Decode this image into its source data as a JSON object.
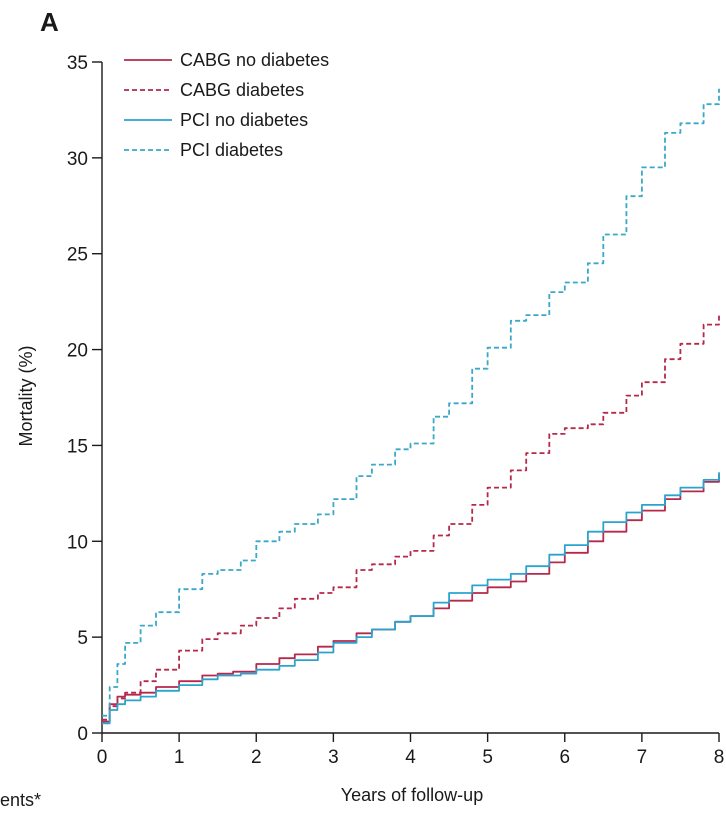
{
  "chart_data": {
    "type": "line",
    "panel_label": "A",
    "xlabel": "Years of follow-up",
    "ylabel": "Mortality (%)",
    "xlim": [
      0,
      8
    ],
    "ylim": [
      0,
      35
    ],
    "x_ticks": [
      0,
      1,
      2,
      3,
      4,
      5,
      6,
      7,
      8
    ],
    "y_ticks": [
      0,
      5,
      10,
      15,
      20,
      25,
      30,
      35
    ],
    "grid": false,
    "legend_position": "top-left",
    "series": [
      {
        "name": "CABG no diabetes",
        "color": "#b5294a",
        "dash": "solid",
        "x": [
          0,
          0.1,
          0.2,
          0.3,
          0.5,
          0.7,
          1.0,
          1.3,
          1.5,
          1.7,
          2.0,
          2.3,
          2.5,
          2.8,
          3.0,
          3.3,
          3.5,
          3.8,
          4.0,
          4.3,
          4.5,
          4.8,
          5.0,
          5.3,
          5.5,
          5.8,
          6.0,
          6.3,
          6.5,
          6.8,
          7.0,
          7.3,
          7.5,
          7.8,
          8.0
        ],
        "y": [
          0.6,
          1.5,
          1.9,
          2.0,
          2.1,
          2.4,
          2.7,
          3.0,
          3.1,
          3.2,
          3.6,
          3.9,
          4.1,
          4.5,
          4.8,
          5.2,
          5.4,
          5.8,
          6.1,
          6.5,
          6.9,
          7.3,
          7.6,
          7.9,
          8.3,
          8.9,
          9.4,
          10.0,
          10.5,
          11.1,
          11.6,
          12.2,
          12.6,
          13.1,
          13.5
        ]
      },
      {
        "name": "CABG diabetes",
        "color": "#b5294a",
        "dash": "dashed",
        "x": [
          0,
          0.1,
          0.2,
          0.3,
          0.5,
          0.7,
          1.0,
          1.3,
          1.5,
          1.8,
          2.0,
          2.3,
          2.5,
          2.8,
          3.0,
          3.3,
          3.5,
          3.8,
          4.0,
          4.3,
          4.5,
          4.8,
          5.0,
          5.3,
          5.5,
          5.8,
          6.0,
          6.3,
          6.5,
          6.8,
          7.0,
          7.3,
          7.5,
          7.8,
          8.0
        ],
        "y": [
          0.7,
          1.4,
          1.8,
          2.1,
          2.7,
          3.3,
          4.3,
          4.9,
          5.2,
          5.6,
          6.0,
          6.5,
          7.0,
          7.3,
          7.6,
          8.5,
          8.8,
          9.2,
          9.5,
          10.3,
          10.9,
          11.9,
          12.8,
          13.7,
          14.6,
          15.6,
          15.9,
          16.1,
          16.7,
          17.6,
          18.3,
          19.5,
          20.3,
          21.3,
          21.9
        ]
      },
      {
        "name": "PCI no diabetes",
        "color": "#2aa3cf",
        "dash": "solid",
        "x": [
          0,
          0.1,
          0.2,
          0.3,
          0.5,
          0.7,
          1.0,
          1.3,
          1.5,
          1.8,
          2.0,
          2.3,
          2.5,
          2.8,
          3.0,
          3.3,
          3.5,
          3.8,
          4.0,
          4.3,
          4.5,
          4.8,
          5.0,
          5.3,
          5.5,
          5.8,
          6.0,
          6.3,
          6.5,
          6.8,
          7.0,
          7.3,
          7.5,
          7.8,
          8.0
        ],
        "y": [
          0.5,
          1.2,
          1.5,
          1.7,
          1.9,
          2.2,
          2.5,
          2.8,
          3.0,
          3.1,
          3.3,
          3.5,
          3.8,
          4.2,
          4.7,
          5.0,
          5.4,
          5.8,
          6.1,
          6.8,
          7.3,
          7.7,
          8.0,
          8.3,
          8.7,
          9.3,
          9.8,
          10.5,
          11.0,
          11.5,
          11.9,
          12.4,
          12.8,
          13.2,
          13.6
        ]
      },
      {
        "name": "PCI diabetes",
        "color": "#3aa8c8",
        "dash": "dashed",
        "x": [
          0,
          0.1,
          0.2,
          0.3,
          0.5,
          0.7,
          1.0,
          1.3,
          1.5,
          1.8,
          2.0,
          2.3,
          2.5,
          2.8,
          3.0,
          3.3,
          3.5,
          3.8,
          4.0,
          4.3,
          4.5,
          4.8,
          5.0,
          5.3,
          5.5,
          5.8,
          6.0,
          6.3,
          6.5,
          6.8,
          7.0,
          7.3,
          7.5,
          7.8,
          8.0
        ],
        "y": [
          0.9,
          2.4,
          3.6,
          4.7,
          5.6,
          6.3,
          7.5,
          8.3,
          8.5,
          9.0,
          10.0,
          10.5,
          10.9,
          11.4,
          12.2,
          13.4,
          14.0,
          14.8,
          15.1,
          16.5,
          17.2,
          19.0,
          20.1,
          21.5,
          21.8,
          23.0,
          23.5,
          24.5,
          26.0,
          28.0,
          29.5,
          31.3,
          31.8,
          32.8,
          33.6
        ]
      }
    ]
  },
  "footer": {
    "clipped_text": "ents*"
  }
}
